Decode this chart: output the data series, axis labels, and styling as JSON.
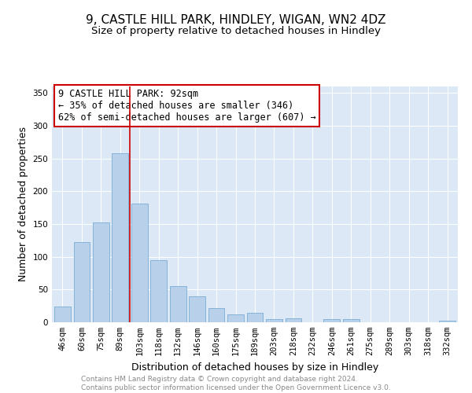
{
  "title": "9, CASTLE HILL PARK, HINDLEY, WIGAN, WN2 4DZ",
  "subtitle": "Size of property relative to detached houses in Hindley",
  "xlabel": "Distribution of detached houses by size in Hindley",
  "ylabel": "Number of detached properties",
  "footer_line1": "Contains HM Land Registry data © Crown copyright and database right 2024.",
  "footer_line2": "Contains public sector information licensed under the Open Government Licence v3.0.",
  "bar_labels": [
    "46sqm",
    "60sqm",
    "75sqm",
    "89sqm",
    "103sqm",
    "118sqm",
    "132sqm",
    "146sqm",
    "160sqm",
    "175sqm",
    "189sqm",
    "203sqm",
    "218sqm",
    "232sqm",
    "246sqm",
    "261sqm",
    "275sqm",
    "289sqm",
    "303sqm",
    "318sqm",
    "332sqm"
  ],
  "bar_values": [
    24,
    123,
    152,
    258,
    181,
    95,
    55,
    40,
    22,
    12,
    14,
    5,
    6,
    0,
    5,
    5,
    0,
    0,
    0,
    0,
    2
  ],
  "bar_color": "#b8d0ea",
  "bar_edge_color": "#7aadd4",
  "vline_x": 3.5,
  "vline_color": "#cc0000",
  "annotation_line1": "9 CASTLE HILL PARK: 92sqm",
  "annotation_line2": "← 35% of detached houses are smaller (346)",
  "annotation_line3": "62% of semi-detached houses are larger (607) →",
  "annotation_box_color": "#cc0000",
  "annotation_text_color": "#000000",
  "ylim": [
    0,
    360
  ],
  "yticks": [
    0,
    50,
    100,
    150,
    200,
    250,
    300,
    350
  ],
  "plot_bg_color": "#dce8f5",
  "title_fontsize": 11,
  "subtitle_fontsize": 9.5,
  "axis_label_fontsize": 9,
  "tick_fontsize": 7.5,
  "annotation_fontsize": 8.5,
  "footer_fontsize": 6.5
}
